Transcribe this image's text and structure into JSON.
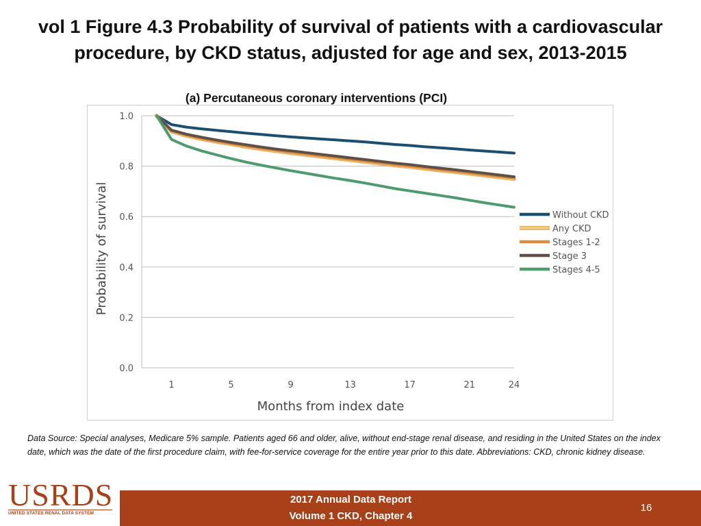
{
  "title": "vol 1 Figure 4.3 Probability of survival of patients with a cardiovascular procedure, by CKD status, adjusted for age and sex, 2013-2015",
  "chart_data": {
    "type": "line",
    "title": "(a) Percutaneous coronary interventions (PCI)",
    "xlabel": "Months from index date",
    "ylabel": "Probability of survival",
    "xlim": [
      -1,
      24
    ],
    "ylim": [
      0.0,
      1.0
    ],
    "x_ticks": [
      1,
      5,
      9,
      13,
      17,
      21,
      24
    ],
    "y_ticks": [
      0.0,
      0.2,
      0.4,
      0.6,
      0.8,
      1.0
    ],
    "y_tick_labels": [
      "0.0",
      "0.2",
      "0.4",
      "0.6",
      "0.8",
      "1.0"
    ],
    "grid": "horizontal",
    "legend_position": "right",
    "x": [
      0,
      1,
      2,
      3,
      4,
      5,
      6,
      7,
      8,
      9,
      10,
      11,
      12,
      13,
      14,
      15,
      16,
      17,
      18,
      19,
      20,
      21,
      22,
      23,
      24
    ],
    "series": [
      {
        "name": "Without CKD",
        "color": "#1b4f72",
        "values": [
          1.0,
          0.965,
          0.955,
          0.948,
          0.942,
          0.937,
          0.931,
          0.926,
          0.921,
          0.916,
          0.912,
          0.908,
          0.904,
          0.9,
          0.896,
          0.891,
          0.886,
          0.882,
          0.877,
          0.873,
          0.869,
          0.864,
          0.86,
          0.856,
          0.852
        ]
      },
      {
        "name": "Any CKD",
        "color": "#f2c77e",
        "values": [
          1.0,
          0.938,
          0.921,
          0.908,
          0.897,
          0.887,
          0.877,
          0.868,
          0.86,
          0.852,
          0.845,
          0.838,
          0.831,
          0.824,
          0.817,
          0.81,
          0.803,
          0.797,
          0.79,
          0.783,
          0.777,
          0.77,
          0.763,
          0.756,
          0.749
        ]
      },
      {
        "name": "Stages 1-2",
        "color": "#e08a3c",
        "values": [
          1.0,
          0.94,
          0.923,
          0.91,
          0.899,
          0.889,
          0.88,
          0.871,
          0.863,
          0.855,
          0.848,
          0.841,
          0.834,
          0.827,
          0.82,
          0.813,
          0.806,
          0.8,
          0.793,
          0.786,
          0.78,
          0.773,
          0.766,
          0.759,
          0.753
        ]
      },
      {
        "name": "Stage 3",
        "color": "#5e4f47",
        "values": [
          1.0,
          0.943,
          0.927,
          0.915,
          0.904,
          0.894,
          0.885,
          0.876,
          0.868,
          0.861,
          0.854,
          0.847,
          0.84,
          0.833,
          0.826,
          0.819,
          0.812,
          0.806,
          0.799,
          0.792,
          0.786,
          0.779,
          0.772,
          0.765,
          0.758
        ]
      },
      {
        "name": "Stages 4-5",
        "color": "#4e9b6f",
        "values": [
          1.0,
          0.906,
          0.88,
          0.861,
          0.845,
          0.83,
          0.816,
          0.804,
          0.793,
          0.782,
          0.772,
          0.762,
          0.752,
          0.743,
          0.733,
          0.722,
          0.711,
          0.702,
          0.693,
          0.684,
          0.675,
          0.665,
          0.655,
          0.646,
          0.637
        ]
      }
    ]
  },
  "footnote": "Data Source: Special analyses, Medicare 5% sample. Patients aged 66 and older, alive, without end-stage renal disease, and residing in the United States on the index date, which was the date of the first procedure claim, with fee-for-service coverage for the entire year prior to this date. Abbreviations: CKD, chronic kidney disease.",
  "footer": {
    "line1": "2017 Annual Data Report",
    "line2": "Volume 1 CKD, Chapter 4",
    "page_number": "16"
  },
  "logo": {
    "main": "USRDS",
    "sub": "UNITED STATES RENAL DATA SYSTEM"
  }
}
